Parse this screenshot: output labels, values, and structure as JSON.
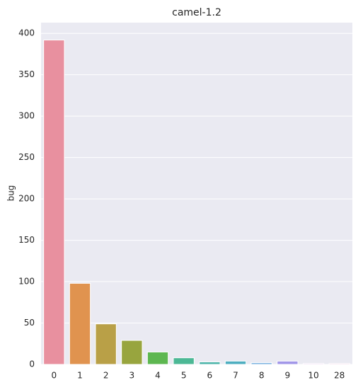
{
  "chart_data": {
    "type": "bar",
    "title": "camel-1.2",
    "ylabel": "bug",
    "categories": [
      "0",
      "1",
      "2",
      "3",
      "4",
      "5",
      "6",
      "7",
      "8",
      "9",
      "10",
      "28"
    ],
    "values": [
      392,
      98,
      49,
      29,
      15,
      8,
      3,
      4,
      2,
      4,
      1,
      1
    ],
    "colors": [
      "#e8909f",
      "#e0934f",
      "#b9a047",
      "#98a53e",
      "#5db750",
      "#4cb895",
      "#4ab3a8",
      "#4eaec0",
      "#6aa9dc",
      "#a297e8",
      "#d88ee6",
      "#e68fc4"
    ],
    "ylim": [
      0,
      413
    ],
    "yticks": [
      0,
      50,
      100,
      150,
      200,
      250,
      300,
      350,
      400
    ],
    "grid": true
  }
}
